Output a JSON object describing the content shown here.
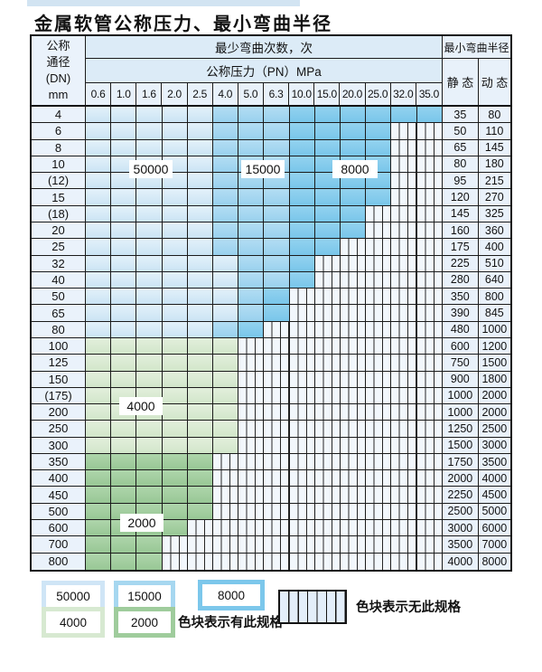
{
  "title": "金属软管公称压力、最小弯曲半径",
  "table": {
    "header": {
      "dn_label": "公称\n通径\n(DN)\nmm",
      "bend_times": "最少弯曲次数，次",
      "pressure": "公称压力（PN）MPa",
      "radius": "最小弯曲半径",
      "static": "静 态",
      "dynamic": "动 态",
      "pressures": [
        "0.6",
        "1.0",
        "1.6",
        "2.0",
        "2.5",
        "4.0",
        "5.0",
        "6.3",
        "10.0",
        "15.0",
        "20.0",
        "25.0",
        "32.0",
        "35.0"
      ]
    },
    "rows": [
      {
        "dn": "4",
        "zones": "LLLLLMMMDDDDDD",
        "static": "35",
        "dynamic": "80"
      },
      {
        "dn": "6",
        "zones": "LLLLLMMMDDDDHH",
        "static": "50",
        "dynamic": "110"
      },
      {
        "dn": "8",
        "zones": "LLLLLMMMDDDDHH",
        "static": "65",
        "dynamic": "145"
      },
      {
        "dn": "10",
        "zones": "LLLLLMMMDDDDHH",
        "static": "80",
        "dynamic": "180"
      },
      {
        "dn": "(12)",
        "zones": "LLLLLMMMDDDDHH",
        "static": "95",
        "dynamic": "215"
      },
      {
        "dn": "15",
        "zones": "LLLLLMMMDDDDHH",
        "static": "120",
        "dynamic": "270"
      },
      {
        "dn": "(18)",
        "zones": "LLLLLMMMDDDHHH",
        "static": "145",
        "dynamic": "325"
      },
      {
        "dn": "20",
        "zones": "LLLLLMMMDDDHHH",
        "static": "160",
        "dynamic": "360"
      },
      {
        "dn": "25",
        "zones": "LLLLLMMMDDHHHH",
        "static": "175",
        "dynamic": "400"
      },
      {
        "dn": "32",
        "zones": "LLLLLLMMDHHHHH",
        "static": "225",
        "dynamic": "510"
      },
      {
        "dn": "40",
        "zones": "LLLLLLMMDHHHHH",
        "static": "280",
        "dynamic": "640"
      },
      {
        "dn": "50",
        "zones": "LLLLLLMDHHHHHH",
        "static": "350",
        "dynamic": "800"
      },
      {
        "dn": "65",
        "zones": "LLLLLLMDHHHHHH",
        "static": "390",
        "dynamic": "845"
      },
      {
        "dn": "80",
        "zones": "LLLLLMDHHHHHHH",
        "static": "480",
        "dynamic": "1000"
      },
      {
        "dn": "100",
        "zones": "GGGGGGHHHHHHHH",
        "static": "600",
        "dynamic": "1200"
      },
      {
        "dn": "125",
        "zones": "GGGGGGHHHHHHHH",
        "static": "750",
        "dynamic": "1500"
      },
      {
        "dn": "150",
        "zones": "GGGGGGHHHHHHHH",
        "static": "900",
        "dynamic": "1800"
      },
      {
        "dn": "(175)",
        "zones": "GGGGGGHHHHHHHH",
        "static": "1000",
        "dynamic": "2000"
      },
      {
        "dn": "200",
        "zones": "GGGGGGHHHHHHHH",
        "static": "1000",
        "dynamic": "2000"
      },
      {
        "dn": "250",
        "zones": "GGGGGGHHHHHHHH",
        "static": "1250",
        "dynamic": "2500"
      },
      {
        "dn": "300",
        "zones": "GGGGGGHHHHHHHH",
        "static": "1500",
        "dynamic": "3000"
      },
      {
        "dn": "350",
        "zones": "EEEEEHHHHHHHHH",
        "static": "1750",
        "dynamic": "3500"
      },
      {
        "dn": "400",
        "zones": "EEEEEHHHHHHHHH",
        "static": "2000",
        "dynamic": "4000"
      },
      {
        "dn": "450",
        "zones": "EEEEEHHHHHHHHH",
        "static": "2250",
        "dynamic": "4500"
      },
      {
        "dn": "500",
        "zones": "EEEEEHHHHHHHHH",
        "static": "2500",
        "dynamic": "5000"
      },
      {
        "dn": "600",
        "zones": "EEEEHHHHHHHHHH",
        "static": "3000",
        "dynamic": "6000"
      },
      {
        "dn": "700",
        "zones": "EEEHHHHHHHHHHH",
        "static": "3500",
        "dynamic": "7000"
      },
      {
        "dn": "800",
        "zones": "EEEHHHHHHHHHHH",
        "static": "4000",
        "dynamic": "8000"
      }
    ]
  },
  "overlay_tags": {
    "t50000": "50000",
    "t15000": "15000",
    "t8000": "8000",
    "t4000": "4000",
    "t2000": "2000"
  },
  "legend": {
    "items": [
      {
        "value": "50000",
        "type": "L"
      },
      {
        "value": "15000",
        "type": "M"
      },
      {
        "value": "8000",
        "type": "D"
      },
      {
        "value": "4000",
        "type": "G"
      },
      {
        "value": "2000",
        "type": "E"
      }
    ],
    "has_spec": "色块表示有此规格",
    "no_spec": "色块表示无此规格"
  },
  "colors": {
    "blue_50000": "#d2e7f5",
    "blue_15000": "#a6d7f0",
    "blue_8000": "#7cc7eb",
    "green_4000": "#d7e9d1",
    "green_2000": "#9fcc9c",
    "hatch_bg": "#f2f7fc",
    "header_bg": "#dcebf7",
    "cell_bg": "#e9f1fa",
    "grid_line": "#1b1b1b"
  }
}
